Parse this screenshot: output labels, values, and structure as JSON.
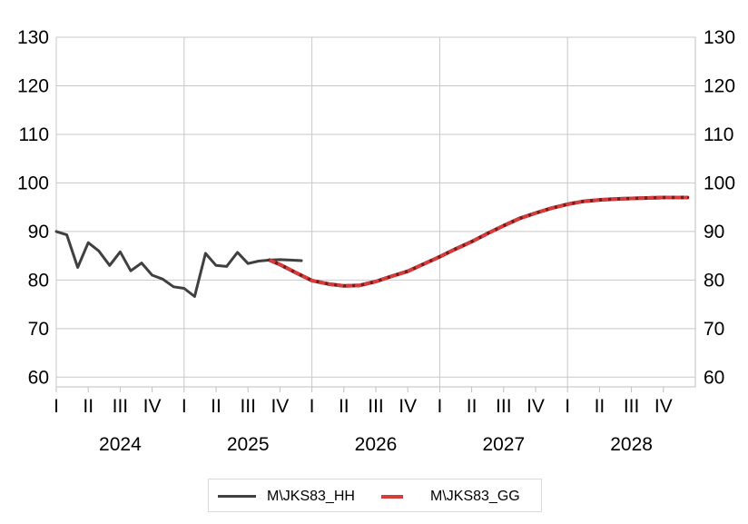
{
  "chart_data": {
    "type": "line",
    "title": "",
    "xlabel": "",
    "ylabel": "",
    "ylim": [
      58,
      130
    ],
    "y_ticks": [
      "60",
      "70",
      "80",
      "90",
      "100",
      "110",
      "120",
      "130"
    ],
    "quarter_labels": [
      "I",
      "II",
      "III",
      "IV"
    ],
    "years": [
      "2024",
      "2025",
      "2026",
      "2027",
      "2028"
    ],
    "grid": true,
    "legend_position": "bottom-center",
    "series": [
      {
        "name": "M\\JKS83_HH",
        "color": "#404040",
        "style": "solid",
        "x": [
          0,
          0.33,
          0.67,
          1,
          1.33,
          1.67,
          2,
          2.33,
          2.67,
          3,
          3.33,
          3.67,
          4,
          4.33,
          4.67,
          5,
          5.33,
          5.67,
          6,
          6.33,
          6.67,
          7,
          7.33,
          7.67
        ],
        "values": [
          90,
          89.3,
          82.6,
          87.7,
          86,
          83,
          85.8,
          81.9,
          83.5,
          81,
          80.2,
          78.6,
          78.3,
          76.6,
          85.5,
          83,
          82.8,
          85.7,
          83.4,
          83.9,
          84.1,
          84.2,
          84.1,
          84
        ]
      },
      {
        "name": "M\\JKS83_GG",
        "color": "#d93a3a",
        "style": "dashed",
        "x": [
          6.67,
          7,
          7.5,
          8,
          8.5,
          9,
          9.5,
          10,
          10.5,
          11,
          11.5,
          12,
          12.5,
          13,
          13.5,
          14,
          14.5,
          15,
          15.5,
          16,
          16.5,
          17,
          17.5,
          18,
          18.5,
          19,
          19.5,
          19.75
        ],
        "values": [
          84.1,
          83.2,
          81.5,
          79.9,
          79.2,
          78.8,
          78.9,
          79.7,
          80.8,
          81.8,
          83.3,
          84.8,
          86.4,
          87.9,
          89.6,
          91.2,
          92.7,
          93.8,
          94.8,
          95.6,
          96.2,
          96.5,
          96.7,
          96.8,
          96.9,
          97,
          97,
          97
        ]
      }
    ]
  }
}
